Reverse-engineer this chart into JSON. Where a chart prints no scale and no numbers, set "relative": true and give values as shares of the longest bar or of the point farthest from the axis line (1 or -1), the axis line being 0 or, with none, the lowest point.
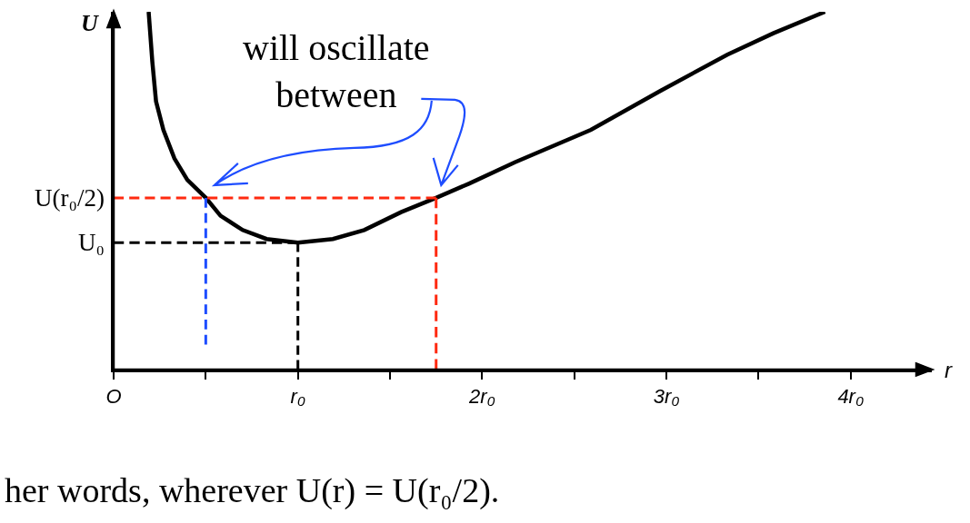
{
  "chart_data": {
    "type": "line",
    "relative": true,
    "xlabel": "r",
    "ylabel": "U",
    "xlim": [
      0,
      4.44
    ],
    "xticks": [
      {
        "value": 0,
        "label": "O"
      },
      {
        "value": 0.5,
        "label": null
      },
      {
        "value": 1,
        "label": "r₀"
      },
      {
        "value": 1.5,
        "label": null
      },
      {
        "value": 2,
        "label": "2r₀"
      },
      {
        "value": 2.5,
        "label": null
      },
      {
        "value": 3,
        "label": "3r₀"
      },
      {
        "value": 3.5,
        "label": null
      },
      {
        "value": 4,
        "label": "4r₀"
      }
    ],
    "series": [
      {
        "color": "#000000",
        "line_style": "solid",
        "x": [
          0.19,
          0.21,
          0.23,
          0.27,
          0.33,
          0.4,
          0.5,
          0.58,
          0.7,
          0.83,
          1.0,
          1.19,
          1.36,
          1.56,
          1.75,
          1.93,
          2.18,
          2.59,
          2.97,
          3.33,
          3.58,
          3.86
        ],
        "values": [
          1.0,
          0.86,
          0.75,
          0.67,
          0.59,
          0.53,
          0.48,
          0.43,
          0.39,
          0.365,
          0.355,
          0.365,
          0.39,
          0.44,
          0.48,
          0.52,
          0.58,
          0.67,
          0.78,
          0.88,
          0.94,
          1.0
        ]
      },
      {
        "color": "#000000",
        "line_style": "dashed",
        "x": [
          0,
          1
        ],
        "values": [
          0.355,
          0.355
        ]
      },
      {
        "color": "#000000",
        "line_style": "dashed",
        "x": [
          1,
          1
        ],
        "values": [
          0.355,
          0
        ]
      },
      {
        "color": "#1e4dff",
        "line_style": "dashed",
        "x": [
          0.5,
          0.5
        ],
        "values": [
          0.48,
          0.07
        ]
      },
      {
        "color": "#ff2a10",
        "line_style": "dashed",
        "x": [
          0,
          1.75
        ],
        "values": [
          0.48,
          0.48
        ]
      },
      {
        "color": "#ff2a10",
        "line_style": "dashed",
        "x": [
          1.75,
          1.75
        ],
        "values": [
          0.48,
          0
        ]
      }
    ],
    "annotations": [
      {
        "text": "U₀",
        "x": 0,
        "y": 0.355
      },
      {
        "text": "U(r₀/2)",
        "x": 0,
        "y": 0.48
      },
      "will oscillate\nbetween",
      "her words, wherever U(r) = U(r₀/2)."
    ],
    "marker": "none"
  }
}
